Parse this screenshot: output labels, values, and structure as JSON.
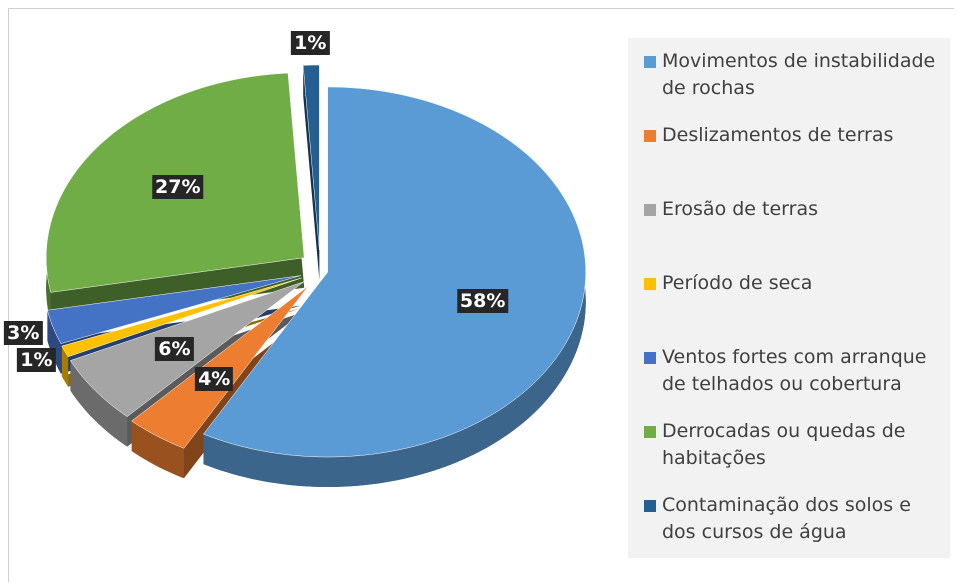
{
  "chart_data": {
    "type": "pie",
    "categories": [
      "Movimentos de instabilidade de rochas",
      "Deslizamentos de terras",
      "Erosão de terras",
      "Período de seca",
      "Ventos fortes com arranque de telhados ou cobertura",
      "Derrocadas ou quedas de habitações",
      "Contaminação dos solos e dos cursos de água"
    ],
    "values": [
      58,
      4,
      6,
      1,
      3,
      27,
      1
    ],
    "value_labels": [
      "58%",
      "4%",
      "6%",
      "1%",
      "3%",
      "27%",
      "1%"
    ],
    "colors": [
      "#5b9bd5",
      "#ed7d31",
      "#a5a5a5",
      "#ffc000",
      "#4472c4",
      "#70ad47",
      "#255e91"
    ],
    "legend": "right"
  }
}
